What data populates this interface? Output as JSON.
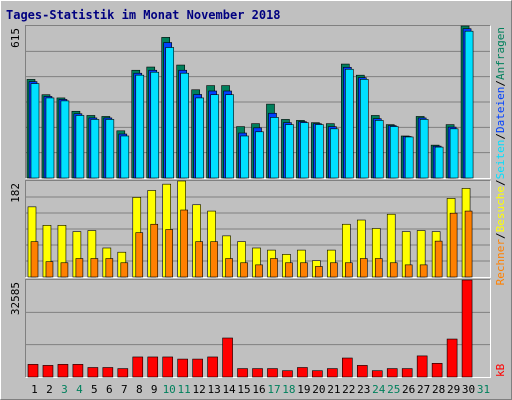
{
  "title": "Tages-Statistik im Monat November 2018",
  "legend_separator": "/",
  "chart_data": [
    {
      "type": "bar",
      "ylim": [
        0,
        615
      ],
      "yticks": [
        615
      ],
      "series": [
        {
          "name": "Anfragen",
          "color": "#00805c",
          "values": [
            399,
            337,
            324,
            270,
            253,
            249,
            191,
            436,
            449,
            569,
            457,
            357,
            374,
            374,
            208,
            220,
            299,
            237,
            233,
            224,
            220,
            461,
            416,
            253,
            216,
            170,
            249,
            133,
            216,
            615,
            null
          ]
        },
        {
          "name": "Dateien",
          "color": "#0040ff",
          "values": [
            390,
            330,
            318,
            260,
            243,
            243,
            178,
            424,
            436,
            548,
            436,
            338,
            352,
            352,
            182,
            203,
            262,
            224,
            228,
            220,
            208,
            448,
            406,
            240,
            212,
            168,
            243,
            129,
            206,
            604,
            null
          ]
        },
        {
          "name": "Seiten",
          "color": "#00e0ff",
          "values": [
            382,
            324,
            312,
            253,
            237,
            237,
            170,
            416,
            428,
            528,
            424,
            324,
            337,
            337,
            170,
            187,
            245,
            216,
            224,
            216,
            199,
            440,
            399,
            233,
            208,
            166,
            237,
            125,
            199,
            594,
            null
          ]
        }
      ]
    },
    {
      "type": "bar",
      "ylim": [
        0,
        182
      ],
      "yticks": [
        182
      ],
      "series": [
        {
          "name": "Besuche",
          "color": "#ffff00",
          "values": [
            133,
            98,
            98,
            86,
            88,
            55,
            47,
            151,
            164,
            176,
            182,
            137,
            125,
            78,
            67,
            55,
            51,
            43,
            51,
            31,
            51,
            100,
            108,
            92,
            119,
            86,
            88,
            86,
            149,
            168,
            null
          ]
        },
        {
          "name": "Rechner",
          "color": "#ff8000",
          "values": [
            67,
            29,
            27,
            35,
            35,
            35,
            27,
            84,
            100,
            90,
            127,
            67,
            67,
            35,
            27,
            23,
            35,
            27,
            27,
            20,
            27,
            27,
            35,
            35,
            27,
            23,
            23,
            68,
            121,
            125,
            null
          ]
        }
      ]
    },
    {
      "type": "bar",
      "ylim": [
        0,
        32585
      ],
      "yticks": [
        32585
      ],
      "categories": [
        "1",
        "2",
        "3",
        "4",
        "5",
        "6",
        "7",
        "8",
        "9",
        "10",
        "11",
        "12",
        "13",
        "14",
        "15",
        "16",
        "17",
        "18",
        "19",
        "20",
        "21",
        "22",
        "23",
        "24",
        "25",
        "26",
        "27",
        "28",
        "29",
        "30",
        "31"
      ],
      "category_colors": [
        "#000000",
        "#000000",
        "#00805c",
        "#00805c",
        "#000000",
        "#000000",
        "#000000",
        "#000000",
        "#000000",
        "#00805c",
        "#00805c",
        "#000000",
        "#000000",
        "#000000",
        "#000000",
        "#000000",
        "#00805c",
        "#00805c",
        "#000000",
        "#000000",
        "#000000",
        "#000000",
        "#000000",
        "#00805c",
        "#00805c",
        "#000000",
        "#000000",
        "#000000",
        "#000000",
        "#000000",
        "#00805c"
      ],
      "series": [
        {
          "name": "kB",
          "color": "#ff0000",
          "values": [
            4250,
            3900,
            4250,
            4250,
            3190,
            3190,
            2830,
            6730,
            6730,
            6730,
            6020,
            6020,
            6730,
            13100,
            2830,
            2830,
            2830,
            2125,
            3190,
            2125,
            2830,
            6375,
            3900,
            2125,
            2830,
            2830,
            7085,
            4600,
            12750,
            32585,
            null
          ]
        }
      ]
    }
  ]
}
